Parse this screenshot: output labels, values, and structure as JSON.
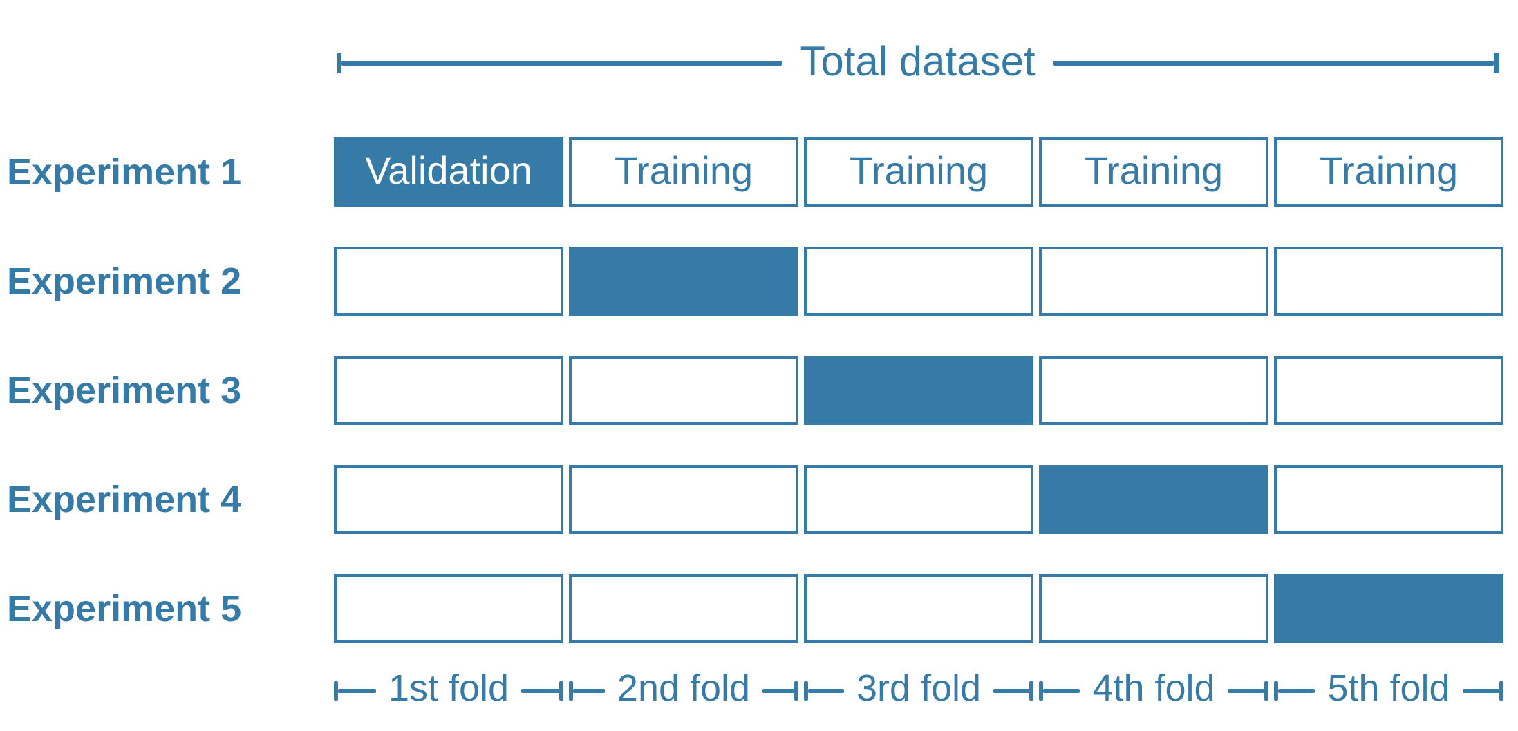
{
  "colors": {
    "accent": "#367AA8",
    "validation_text": "#FFFFFF",
    "background": "#FFFFFF"
  },
  "total_dataset": {
    "label": "Total dataset"
  },
  "experiments": [
    {
      "label": "Experiment 1",
      "validation_fold": 1,
      "cells": [
        "Validation",
        "Training",
        "Training",
        "Training",
        "Training"
      ]
    },
    {
      "label": "Experiment 2",
      "validation_fold": 2,
      "cells": [
        "",
        "",
        "",
        "",
        ""
      ]
    },
    {
      "label": "Experiment 3",
      "validation_fold": 3,
      "cells": [
        "",
        "",
        "",
        "",
        ""
      ]
    },
    {
      "label": "Experiment 4",
      "validation_fold": 4,
      "cells": [
        "",
        "",
        "",
        "",
        ""
      ]
    },
    {
      "label": "Experiment 5",
      "validation_fold": 5,
      "cells": [
        "",
        "",
        "",
        "",
        ""
      ]
    }
  ],
  "folds": [
    {
      "label": "1st fold"
    },
    {
      "label": "2nd fold"
    },
    {
      "label": "3rd fold"
    },
    {
      "label": "4th fold"
    },
    {
      "label": "5th fold"
    }
  ]
}
